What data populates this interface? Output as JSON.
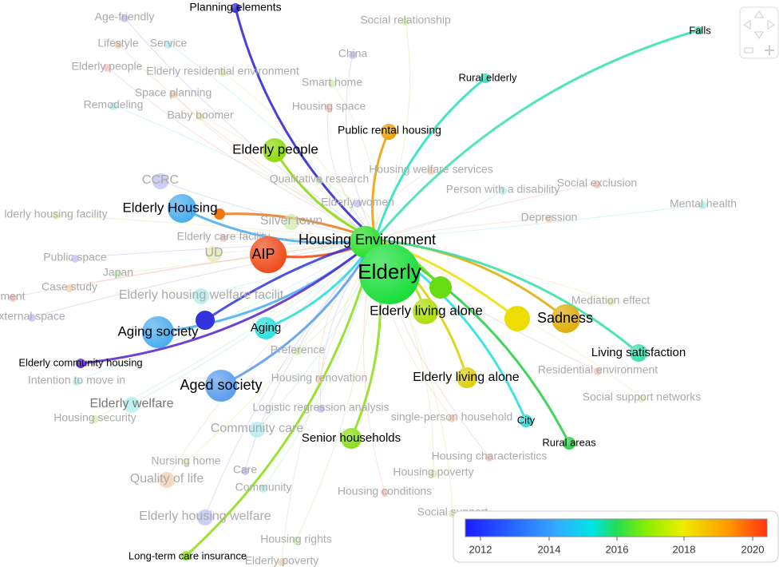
{
  "nodes": {
    "highlighted": [
      "Planning elements",
      "Falls",
      "Rural elderly",
      "Public rental housing",
      "Elderly people",
      "Elderly Housing",
      "AIP",
      "Housing Environment",
      "Elderly",
      "Elderly living alone",
      "Sadness",
      "Aging society",
      "Aging",
      "Living satisfaction",
      "Elderly community housing",
      "Aged society",
      "Elderly living alone",
      "Senior households",
      "City",
      "Rural areas",
      "Long-term care insurance"
    ],
    "faded": [
      "Age-friendly",
      "Social relationship",
      "Lifestyle",
      "Service",
      "Elderly people",
      "Elderly residential environment",
      "China",
      "Smart home",
      "Space planning",
      "Remodeling",
      "Housing space",
      "Baby boomer",
      "CCRC",
      "Qualitative research",
      "Housing welfare services",
      "Person with a disability",
      "Social exclusion",
      "lderly housing facility",
      "Elderly women",
      "Silver town",
      "Depression",
      "Mental health",
      "Elderly care facility",
      "UD",
      "Public space",
      "Japan",
      "Case study",
      "Elderly housing welfare facilit",
      "ment",
      "Mediation effect",
      "xternal space",
      "Preference",
      "Housing renovation",
      "Intention to move in",
      "Residential environment",
      "Social support networks",
      "Logistic regression analysis",
      "Housing security",
      "single-person household",
      "Community care",
      "Housing characteristics",
      "Nursing home",
      "Care",
      "Housing poverty",
      "Quality of life",
      "Community",
      "Housing conditions",
      "Social support",
      "Elderly housing welfare",
      "Housing rights",
      "Elderly poverty",
      "Elderly welfare"
    ]
  },
  "legend": {
    "ticks": [
      "2012",
      "2014",
      "2016",
      "2018",
      "2020"
    ]
  }
}
